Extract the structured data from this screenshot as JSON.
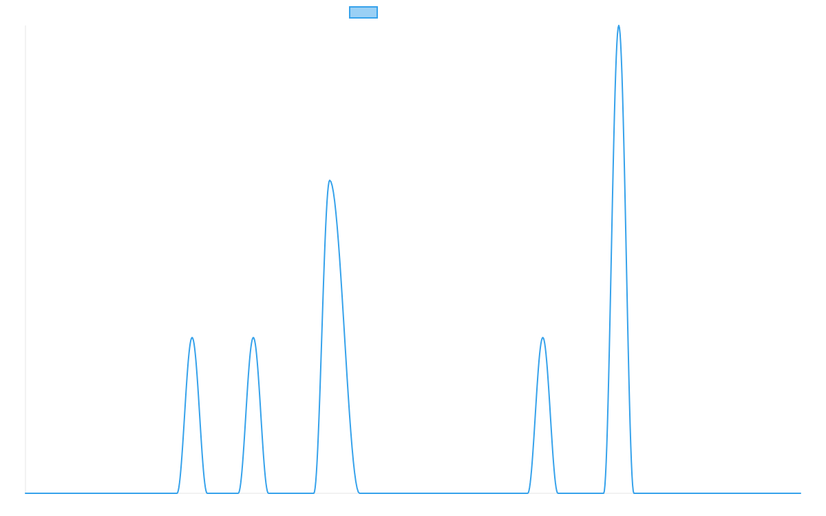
{
  "chart_data": {
    "type": "line",
    "title": "",
    "xlabel": "",
    "ylabel": "",
    "xlim": [
      0,
      1
    ],
    "ylim": [
      0,
      1
    ],
    "grid": false,
    "legend_position": "top-center",
    "series": [
      {
        "color": "#36a2eb",
        "fill": "#9ad0f5",
        "peaks": [
          {
            "x": 0.215,
            "height": 0.333,
            "left_width": 0.0195,
            "right_width": 0.0195
          },
          {
            "x": 0.294,
            "height": 0.333,
            "left_width": 0.0195,
            "right_width": 0.0195
          },
          {
            "x": 0.3925,
            "height": 0.669,
            "left_width": 0.0205,
            "right_width": 0.0385
          },
          {
            "x": 0.6675,
            "height": 0.333,
            "left_width": 0.0195,
            "right_width": 0.0195
          },
          {
            "x": 0.7655,
            "height": 1.0,
            "left_width": 0.0195,
            "right_width": 0.0195
          }
        ]
      }
    ]
  }
}
